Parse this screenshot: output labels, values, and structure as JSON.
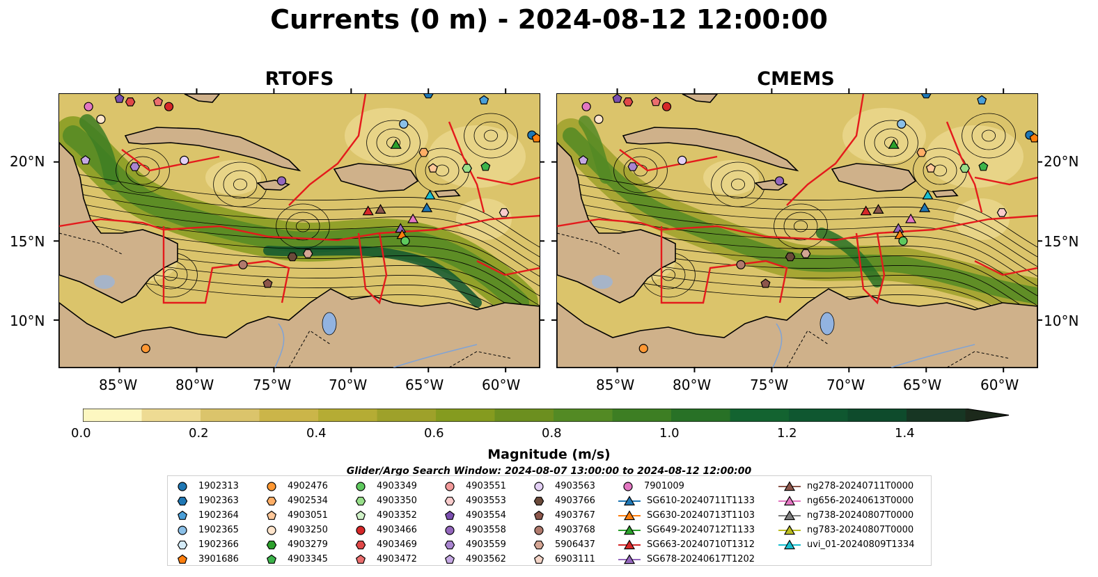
{
  "title": "Currents (0 m) - 2024-08-12 12:00:00",
  "panels": [
    {
      "title": "RTOFS"
    },
    {
      "title": "CMEMS"
    }
  ],
  "axes": {
    "lat_labels": [
      "20°N",
      "15°N",
      "10°N"
    ],
    "lon_labels": [
      "85°W",
      "80°W",
      "75°W",
      "70°W",
      "65°W",
      "60°W"
    ]
  },
  "colorbar": {
    "title": "Magnitude (m/s)",
    "ticks": [
      "0.0",
      "0.2",
      "0.4",
      "0.6",
      "0.8",
      "1.0",
      "1.2",
      "1.4"
    ],
    "colors": [
      "#fdf7c1",
      "#eedb93",
      "#dbc46b",
      "#cbb549",
      "#b5ac34",
      "#9ea12a",
      "#859b1f",
      "#6c8f1f",
      "#538a24",
      "#3d7e23",
      "#287126",
      "#136330",
      "#0f5730",
      "#0e4b2c",
      "#173623",
      "#1c291b"
    ]
  },
  "search_window": "Glider/Argo Search Window: 2024-08-07 13:00:00 to 2024-08-12 12:00:00",
  "legend": {
    "columns": [
      [
        {
          "label": "1902313",
          "shape": "circle",
          "color": "#1f77b4"
        },
        {
          "label": "1902363",
          "shape": "hexagon",
          "color": "#1f77b4"
        },
        {
          "label": "1902364",
          "shape": "pentagon",
          "color": "#4a9fd8"
        },
        {
          "label": "1902365",
          "shape": "circle",
          "color": "#8bc0e8"
        },
        {
          "label": "1902366",
          "shape": "hexagon",
          "color": "#d4ebf8"
        },
        {
          "label": "3901686",
          "shape": "pentagon",
          "color": "#ff7f0e"
        }
      ],
      [
        {
          "label": "4902476",
          "shape": "circle",
          "color": "#ff9833"
        },
        {
          "label": "4902534",
          "shape": "hexagon",
          "color": "#ffae66"
        },
        {
          "label": "4903051",
          "shape": "pentagon",
          "color": "#ffc799"
        },
        {
          "label": "4903250",
          "shape": "circle",
          "color": "#ffe5cc"
        },
        {
          "label": "4903279",
          "shape": "hexagon",
          "color": "#2ca02c"
        },
        {
          "label": "4903345",
          "shape": "pentagon",
          "color": "#3cb44b"
        }
      ],
      [
        {
          "label": "4903349",
          "shape": "circle",
          "color": "#5ec95e"
        },
        {
          "label": "4903350",
          "shape": "hexagon",
          "color": "#98df8a"
        },
        {
          "label": "4903352",
          "shape": "pentagon",
          "color": "#d0f2c8"
        },
        {
          "label": "4903466",
          "shape": "circle",
          "color": "#d62728"
        },
        {
          "label": "4903469",
          "shape": "hexagon",
          "color": "#e04848"
        },
        {
          "label": "4903472",
          "shape": "pentagon",
          "color": "#eb6e6e"
        }
      ],
      [
        {
          "label": "4903551",
          "shape": "circle",
          "color": "#f29a9a"
        },
        {
          "label": "4903553",
          "shape": "hexagon",
          "color": "#f9cccc"
        },
        {
          "label": "4903554",
          "shape": "pentagon",
          "color": "#7b4fb0"
        },
        {
          "label": "4903558",
          "shape": "circle",
          "color": "#9467bd"
        },
        {
          "label": "4903559",
          "shape": "hexagon",
          "color": "#a985d0"
        },
        {
          "label": "4903562",
          "shape": "pentagon",
          "color": "#c5a8e3"
        }
      ],
      [
        {
          "label": "4903563",
          "shape": "circle",
          "color": "#e3d0f5"
        },
        {
          "label": "4903766",
          "shape": "hexagon",
          "color": "#6b4a3a"
        },
        {
          "label": "4903767",
          "shape": "pentagon",
          "color": "#8c564b"
        },
        {
          "label": "4903768",
          "shape": "circle",
          "color": "#b07a6d"
        },
        {
          "label": "5906437",
          "shape": "hexagon",
          "color": "#d4a594"
        },
        {
          "label": "6903111",
          "shape": "pentagon",
          "color": "#f4d5c8"
        }
      ],
      [
        {
          "label": "7901009",
          "shape": "circle",
          "color": "#e377c2"
        },
        {
          "label": "SG610-20240711T1133",
          "shape": "triangle",
          "color": "#1f77b4"
        },
        {
          "label": "SG630-20240713T1103",
          "shape": "triangle",
          "color": "#ff7f0e"
        },
        {
          "label": "SG649-20240712T1133",
          "shape": "triangle",
          "color": "#2ca02c"
        },
        {
          "label": "SG663-20240710T1312",
          "shape": "triangle",
          "color": "#d62728"
        },
        {
          "label": "SG678-20240617T1202",
          "shape": "triangle",
          "color": "#9467bd"
        }
      ],
      [
        {
          "label": "ng278-20240711T0000",
          "shape": "triangle",
          "color": "#8c564b"
        },
        {
          "label": "ng656-20240613T0000",
          "shape": "triangle",
          "color": "#e377c2"
        },
        {
          "label": "ng738-20240807T0000",
          "shape": "triangle",
          "color": "#7f7f7f"
        },
        {
          "label": "ng783-20240807T0000",
          "shape": "triangle",
          "color": "#bcbd22"
        },
        {
          "label": "uvi_01-20240809T1334",
          "shape": "triangle",
          "color": "#17becf"
        }
      ]
    ]
  },
  "markers": [
    {
      "shape": "triangle",
      "color": "#2ca02c",
      "lon": -67.1,
      "lat": 21.1
    },
    {
      "shape": "triangle",
      "color": "#d62728",
      "lon": -68.9,
      "lat": 16.9
    },
    {
      "shape": "triangle",
      "color": "#8c564b",
      "lon": -68.1,
      "lat": 17.0
    },
    {
      "shape": "triangle",
      "color": "#17becf",
      "lon": -64.9,
      "lat": 17.9
    },
    {
      "shape": "triangle",
      "color": "#1f77b4",
      "lon": -65.1,
      "lat": 17.1
    },
    {
      "shape": "triangle",
      "color": "#e377c2",
      "lon": -66.0,
      "lat": 16.4
    },
    {
      "shape": "triangle",
      "color": "#9467bd",
      "lon": -66.8,
      "lat": 15.8
    },
    {
      "shape": "triangle",
      "color": "#ff7f0e",
      "lon": -66.7,
      "lat": 15.4
    },
    {
      "shape": "circle",
      "color": "#5ec95e",
      "lon": -66.5,
      "lat": 15.0
    },
    {
      "shape": "circle",
      "color": "#8bc0e8",
      "lon": -66.6,
      "lat": 22.4
    },
    {
      "shape": "hexagon",
      "color": "#98df8a",
      "lon": -62.5,
      "lat": 19.6
    },
    {
      "shape": "pentagon",
      "color": "#3cb44b",
      "lon": -61.3,
      "lat": 19.7
    },
    {
      "shape": "hexagon",
      "color": "#ffae66",
      "lon": -65.3,
      "lat": 20.6
    },
    {
      "shape": "pentagon",
      "color": "#ffc799",
      "lon": -64.7,
      "lat": 19.6
    },
    {
      "shape": "circle",
      "color": "#9467bd",
      "lon": -74.5,
      "lat": 18.8
    },
    {
      "shape": "hexagon",
      "color": "#a985d0",
      "lon": -84.0,
      "lat": 19.7
    },
    {
      "shape": "pentagon",
      "color": "#c5a8e3",
      "lon": -87.2,
      "lat": 20.1
    },
    {
      "shape": "circle",
      "color": "#e3d0f5",
      "lon": -80.8,
      "lat": 20.1
    },
    {
      "shape": "circle",
      "color": "#e377c2",
      "lon": -87.0,
      "lat": 23.5
    },
    {
      "shape": "circle",
      "color": "#ffe5cc",
      "lon": -86.2,
      "lat": 22.7
    },
    {
      "shape": "circle",
      "color": "#b07a6d",
      "lon": -77.0,
      "lat": 13.5
    },
    {
      "shape": "hexagon",
      "color": "#6b4a3a",
      "lon": -73.8,
      "lat": 14.0
    },
    {
      "shape": "hexagon",
      "color": "#d4a594",
      "lon": -72.8,
      "lat": 14.2
    },
    {
      "shape": "pentagon",
      "color": "#8c564b",
      "lon": -75.4,
      "lat": 12.3
    },
    {
      "shape": "circle",
      "color": "#ff9833",
      "lon": -83.3,
      "lat": 8.2
    },
    {
      "shape": "circle",
      "color": "#1f77b4",
      "lon": -58.3,
      "lat": 21.7
    },
    {
      "shape": "pentagon",
      "color": "#ff7f0e",
      "lon": -58.0,
      "lat": 21.5
    },
    {
      "shape": "pentagon",
      "color": "#4a9fd8",
      "lon": -61.4,
      "lat": 23.9
    },
    {
      "shape": "hexagon",
      "color": "#1f77b4",
      "lon": -65.0,
      "lat": 24.3
    },
    {
      "shape": "pentagon",
      "color": "#eb6e6e",
      "lon": -82.5,
      "lat": 23.8
    },
    {
      "shape": "hexagon",
      "color": "#e04848",
      "lon": -84.3,
      "lat": 23.8
    },
    {
      "shape": "circle",
      "color": "#d62728",
      "lon": -81.8,
      "lat": 23.5
    },
    {
      "shape": "pentagon",
      "color": "#7b4fb0",
      "lon": -85.0,
      "lat": 24.0
    },
    {
      "shape": "hexagon",
      "color": "#f9cccc",
      "lon": -60.1,
      "lat": 16.8
    }
  ]
}
